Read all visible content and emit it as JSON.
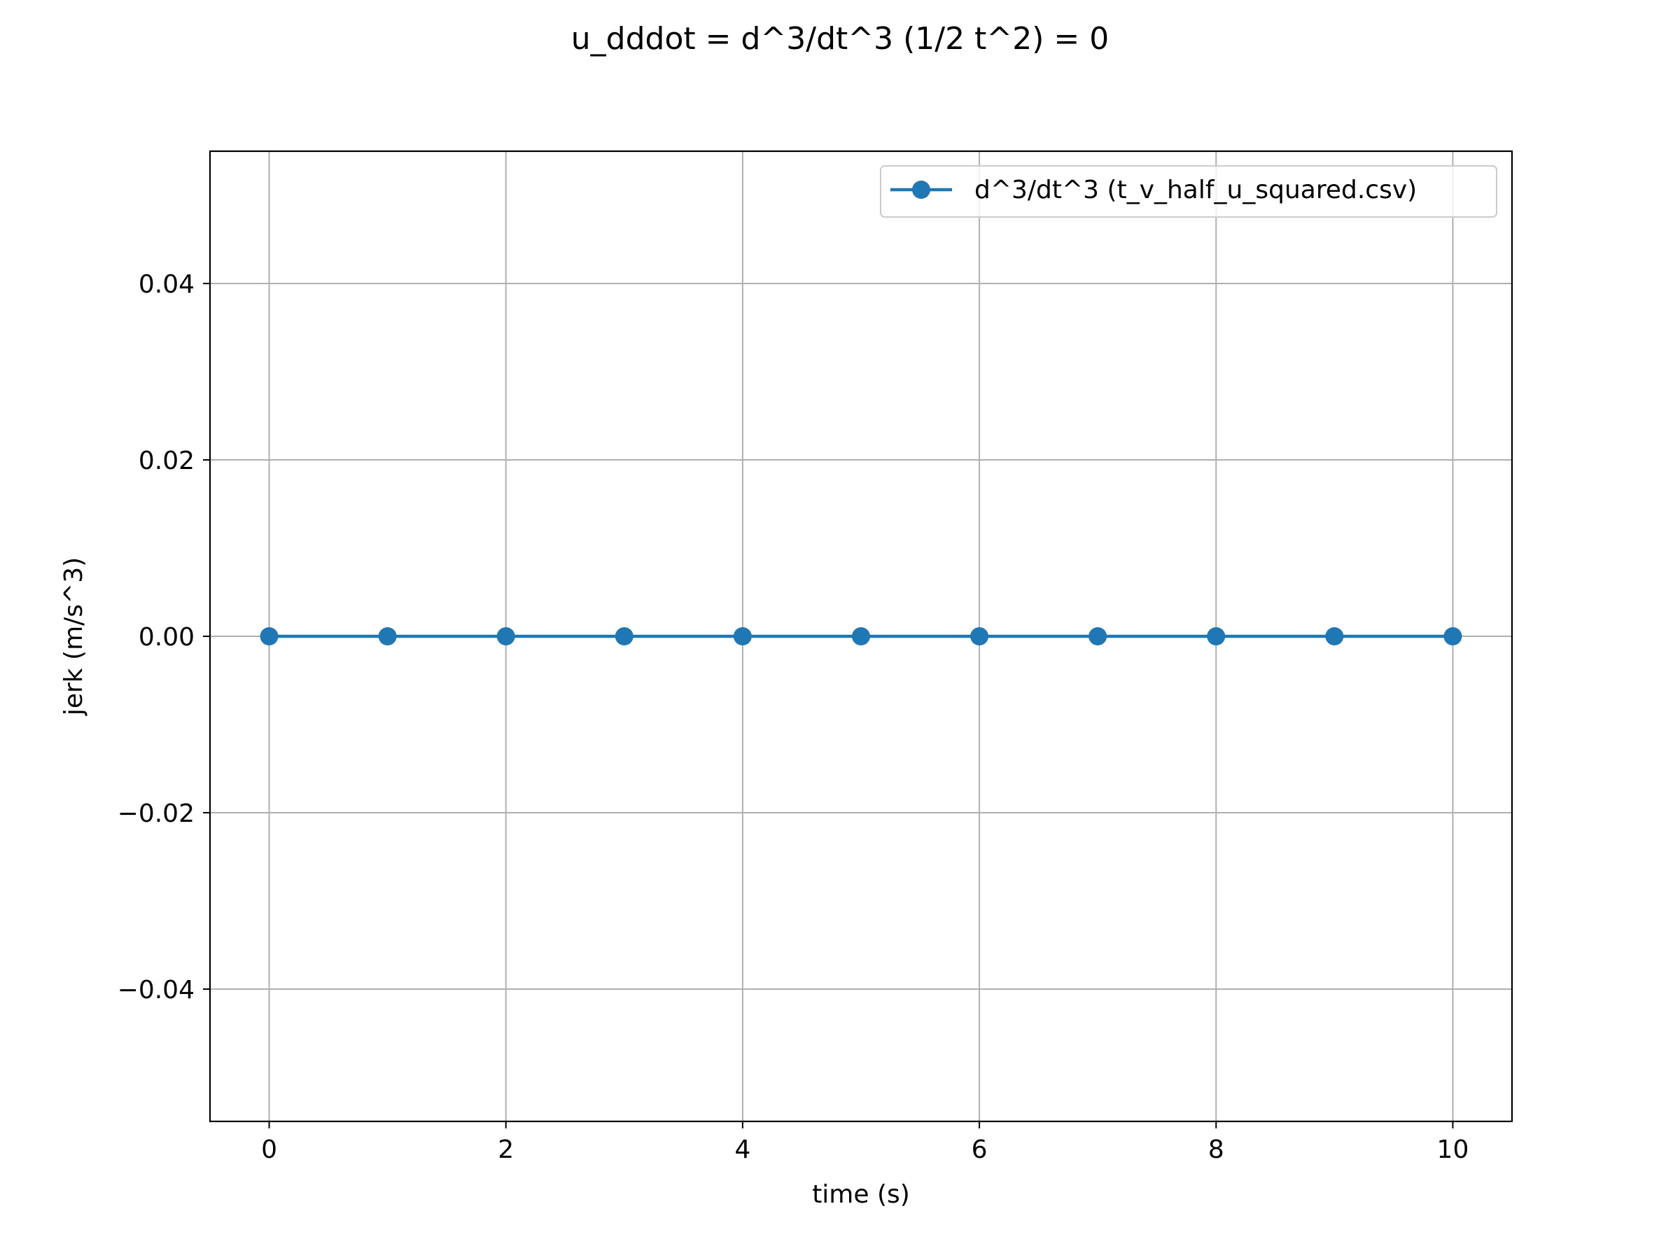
{
  "chart_data": {
    "type": "line",
    "title": "u_dddot = d^3/dt^3 (1/2 t^2) = 0",
    "xlabel": "time (s)",
    "ylabel": "jerk (m/s^3)",
    "xlim": [
      -0.5,
      10.5
    ],
    "ylim": [
      -0.055,
      0.055
    ],
    "x_ticks": [
      0,
      2,
      4,
      6,
      8,
      10
    ],
    "x_tick_labels": [
      "0",
      "2",
      "4",
      "6",
      "8",
      "10"
    ],
    "y_ticks": [
      0.04,
      0.02,
      0.0,
      -0.02,
      -0.04
    ],
    "y_tick_labels": [
      "0.04",
      "0.02",
      "0.00",
      "−0.02",
      "−0.04"
    ],
    "grid": true,
    "legend_position": "top-right",
    "series": [
      {
        "name": "d^3/dt^3 (t_v_half_u_squared.csv)",
        "color": "#1f77b4",
        "marker": "circle",
        "x": [
          0,
          1,
          2,
          3,
          4,
          5,
          6,
          7,
          8,
          9,
          10
        ],
        "y": [
          0,
          0,
          0,
          0,
          0,
          0,
          0,
          0,
          0,
          0,
          0
        ]
      }
    ]
  }
}
